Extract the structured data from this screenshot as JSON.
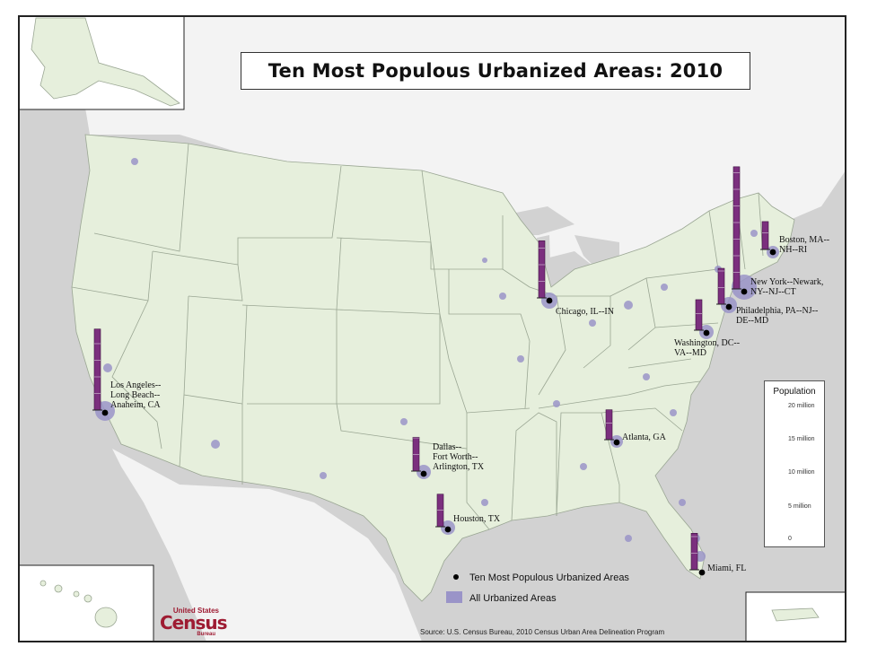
{
  "title": "Ten Most Populous Urbanized Areas:  2010",
  "colors": {
    "land": "#e6efdc",
    "water": "#c9c9c9",
    "urban": "#9a94c8",
    "bar": "#7b2f7e",
    "state_border": "#9aa693"
  },
  "cities": [
    {
      "id": "new-york",
      "label": "New York--Newark,\nNY--NJ--CT",
      "population_million": 18.4
    },
    {
      "id": "los-angeles",
      "label": "Los Angeles--\nLong Beach--\nAnaheim, CA",
      "population_million": 12.2
    },
    {
      "id": "chicago",
      "label": "Chicago, IL--IN",
      "population_million": 8.6
    },
    {
      "id": "miami",
      "label": "Miami, FL",
      "population_million": 5.5
    },
    {
      "id": "philadelphia",
      "label": "Philadelphia, PA--NJ--\nDE--MD",
      "population_million": 5.4
    },
    {
      "id": "dallas",
      "label": "Dallas--\nFort Worth--\nArlington, TX",
      "population_million": 5.1
    },
    {
      "id": "houston",
      "label": "Houston, TX",
      "population_million": 4.9
    },
    {
      "id": "washington",
      "label": "Washington, DC--\nVA--MD",
      "population_million": 4.6
    },
    {
      "id": "atlanta",
      "label": "Atlanta, GA",
      "population_million": 4.5
    },
    {
      "id": "boston",
      "label": "Boston, MA--\nNH--RI",
      "population_million": 4.2
    }
  ],
  "legend": {
    "title": "Population",
    "ticks": [
      "20 million",
      "15 million",
      "10 million",
      "5 million",
      "0"
    ],
    "max_million": 20
  },
  "key": {
    "point_label": "Ten Most Populous Urbanized Areas",
    "area_label": "All Urbanized Areas"
  },
  "source": "Source:  U.S. Census Bureau, 2010 Census Urban Area Delineation Program",
  "logo": {
    "top": "United States",
    "main": "Census",
    "bottom": "Bureau"
  }
}
